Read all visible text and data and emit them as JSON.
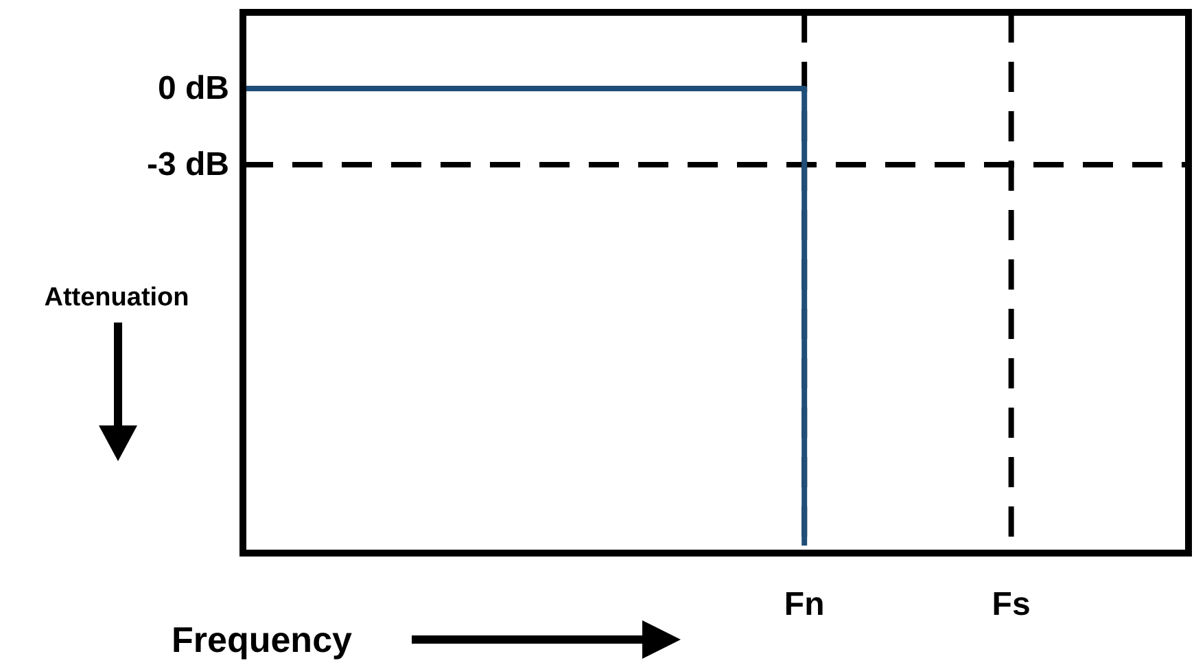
{
  "chart_data": {
    "type": "step",
    "xlabel": "Frequency",
    "ylabel": "Attenuation",
    "categories": [
      null,
      null,
      null,
      null,
      null,
      null,
      null,
      null,
      null,
      null,
      null,
      null,
      null,
      null,
      null,
      null,
      null,
      null,
      null,
      "Fn",
      null,
      null,
      null,
      null,
      null,
      null,
      "Fs",
      null,
      null,
      null,
      null,
      null,
      null
    ],
    "ylim": [
      -18.3,
      3
    ],
    "yticks": [
      {
        "value": 0,
        "label": "0 dB"
      },
      {
        "value": -3,
        "label": "-3 dB"
      }
    ],
    "series": [
      {
        "color": "#1f4e79",
        "values": [
          0,
          0,
          0,
          0,
          0,
          0,
          0,
          0,
          0,
          0,
          0,
          0,
          0,
          0,
          0,
          0,
          0,
          0,
          0,
          -18,
          null,
          null,
          null,
          null,
          null,
          null,
          null,
          null,
          null,
          null,
          null,
          null,
          null
        ]
      }
    ],
    "ref_lines": [
      {
        "axis": "y",
        "value": -3,
        "color": "#000000",
        "line_style": "dashed"
      },
      {
        "axis": "x",
        "value": "Fs",
        "color": "#000000",
        "line_style": "dashed"
      },
      {
        "axis": "x",
        "value": "Fn",
        "color": "#000000",
        "line_style": "dashed"
      }
    ]
  }
}
